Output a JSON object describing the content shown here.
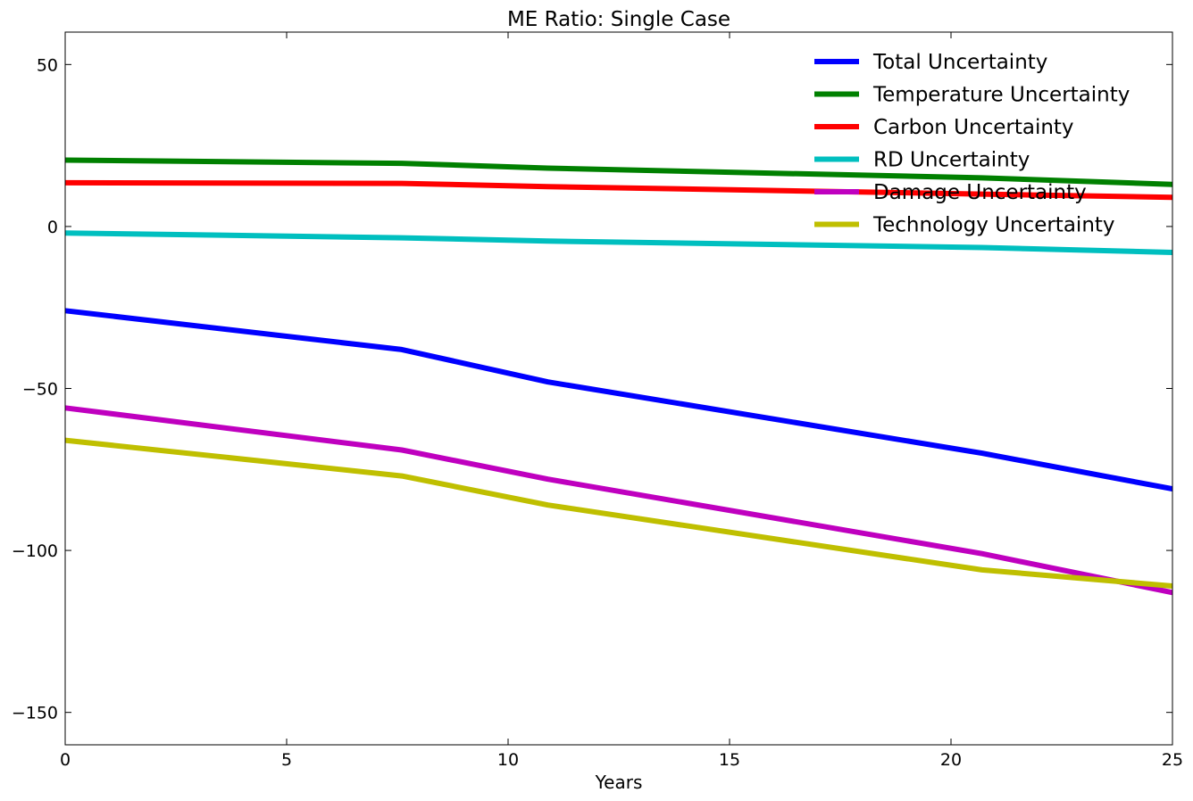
{
  "chart_data": {
    "type": "line",
    "title": "ME Ratio: Single Case",
    "xlabel": "Years",
    "ylabel": "",
    "xlim": [
      0,
      25
    ],
    "ylim": [
      -160,
      60
    ],
    "xticks": [
      0,
      5,
      10,
      15,
      20,
      25
    ],
    "xtick_labels": [
      "0",
      "5",
      "10",
      "15",
      "20",
      "25"
    ],
    "yticks": [
      50,
      0,
      -50,
      -100,
      -150
    ],
    "ytick_labels": [
      "50",
      "0",
      "−50",
      "−100",
      "−150"
    ],
    "grid": false,
    "legend_position": "top-right",
    "x": [
      0,
      7.6,
      10.9,
      20.7,
      25
    ],
    "series": [
      {
        "name": "Total Uncertainty",
        "color": "#0000ff",
        "values": [
          -26,
          -38,
          -48,
          -70,
          -81
        ]
      },
      {
        "name": "Temperature Uncertainty",
        "color": "#008000",
        "values": [
          20.5,
          19.5,
          18,
          15,
          13
        ]
      },
      {
        "name": "Carbon Uncertainty",
        "color": "#ff0000",
        "values": [
          13.5,
          13.3,
          12.3,
          10,
          9
        ]
      },
      {
        "name": "RD Uncertainty",
        "color": "#00bfbf",
        "values": [
          -2,
          -3.5,
          -4.5,
          -6.5,
          -8
        ]
      },
      {
        "name": "Damage Uncertainty",
        "color": "#bf00bf",
        "values": [
          -56,
          -69,
          -78,
          -101,
          -113
        ]
      },
      {
        "name": "Technology Uncertainty",
        "color": "#bfbf00",
        "values": [
          -66,
          -77,
          -86,
          -106,
          -111
        ]
      }
    ]
  }
}
